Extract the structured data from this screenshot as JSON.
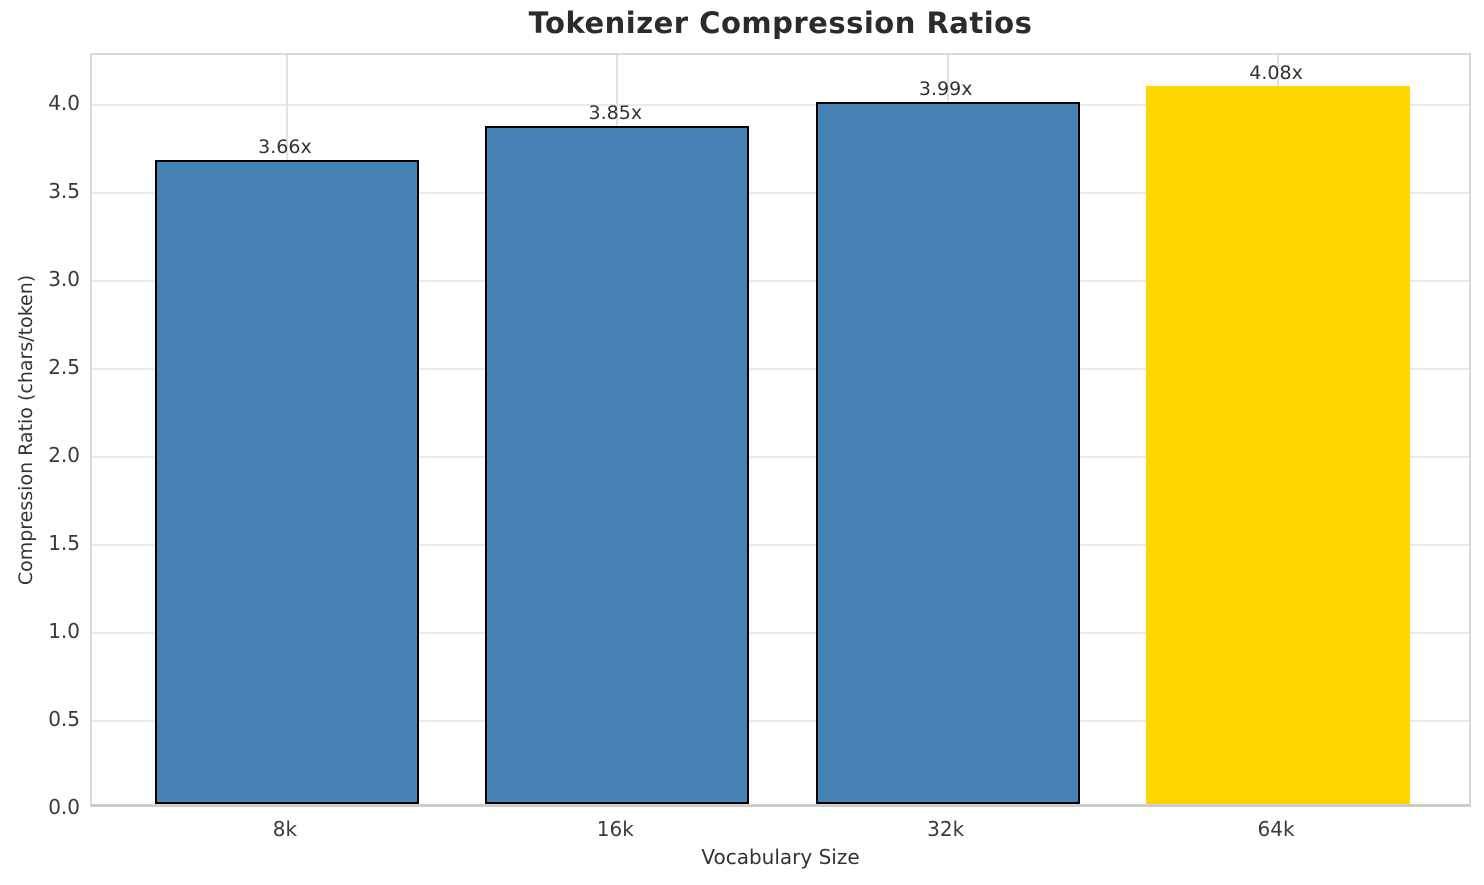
{
  "chart_data": {
    "type": "bar",
    "title": "Tokenizer Compression Ratios",
    "xlabel": "Vocabulary Size",
    "ylabel": "Compression Ratio (chars/token)",
    "categories": [
      "8k",
      "16k",
      "32k",
      "64k"
    ],
    "values": [
      3.66,
      3.85,
      3.99,
      4.08
    ],
    "bar_labels": [
      "3.66x",
      "3.85x",
      "3.99x",
      "4.08x"
    ],
    "yticks": [
      0.0,
      0.5,
      1.0,
      1.5,
      2.0,
      2.5,
      3.0,
      3.5,
      4.0
    ],
    "ytick_labels": [
      "0.0",
      "0.5",
      "1.0",
      "1.5",
      "2.0",
      "2.5",
      "3.0",
      "3.5",
      "4.0"
    ],
    "ylim": [
      0,
      4.284
    ],
    "grid": "both",
    "legend": "none",
    "colors": {
      "bar_fill": "#4682B4",
      "bar_edge": "#000000",
      "highlight_fill": "#FFD700",
      "highlight_index": 3,
      "grid_h": "#eaeaea",
      "grid_v": "#e3e3e3",
      "text": "#333333",
      "title_text": "#2b2b2b"
    }
  }
}
